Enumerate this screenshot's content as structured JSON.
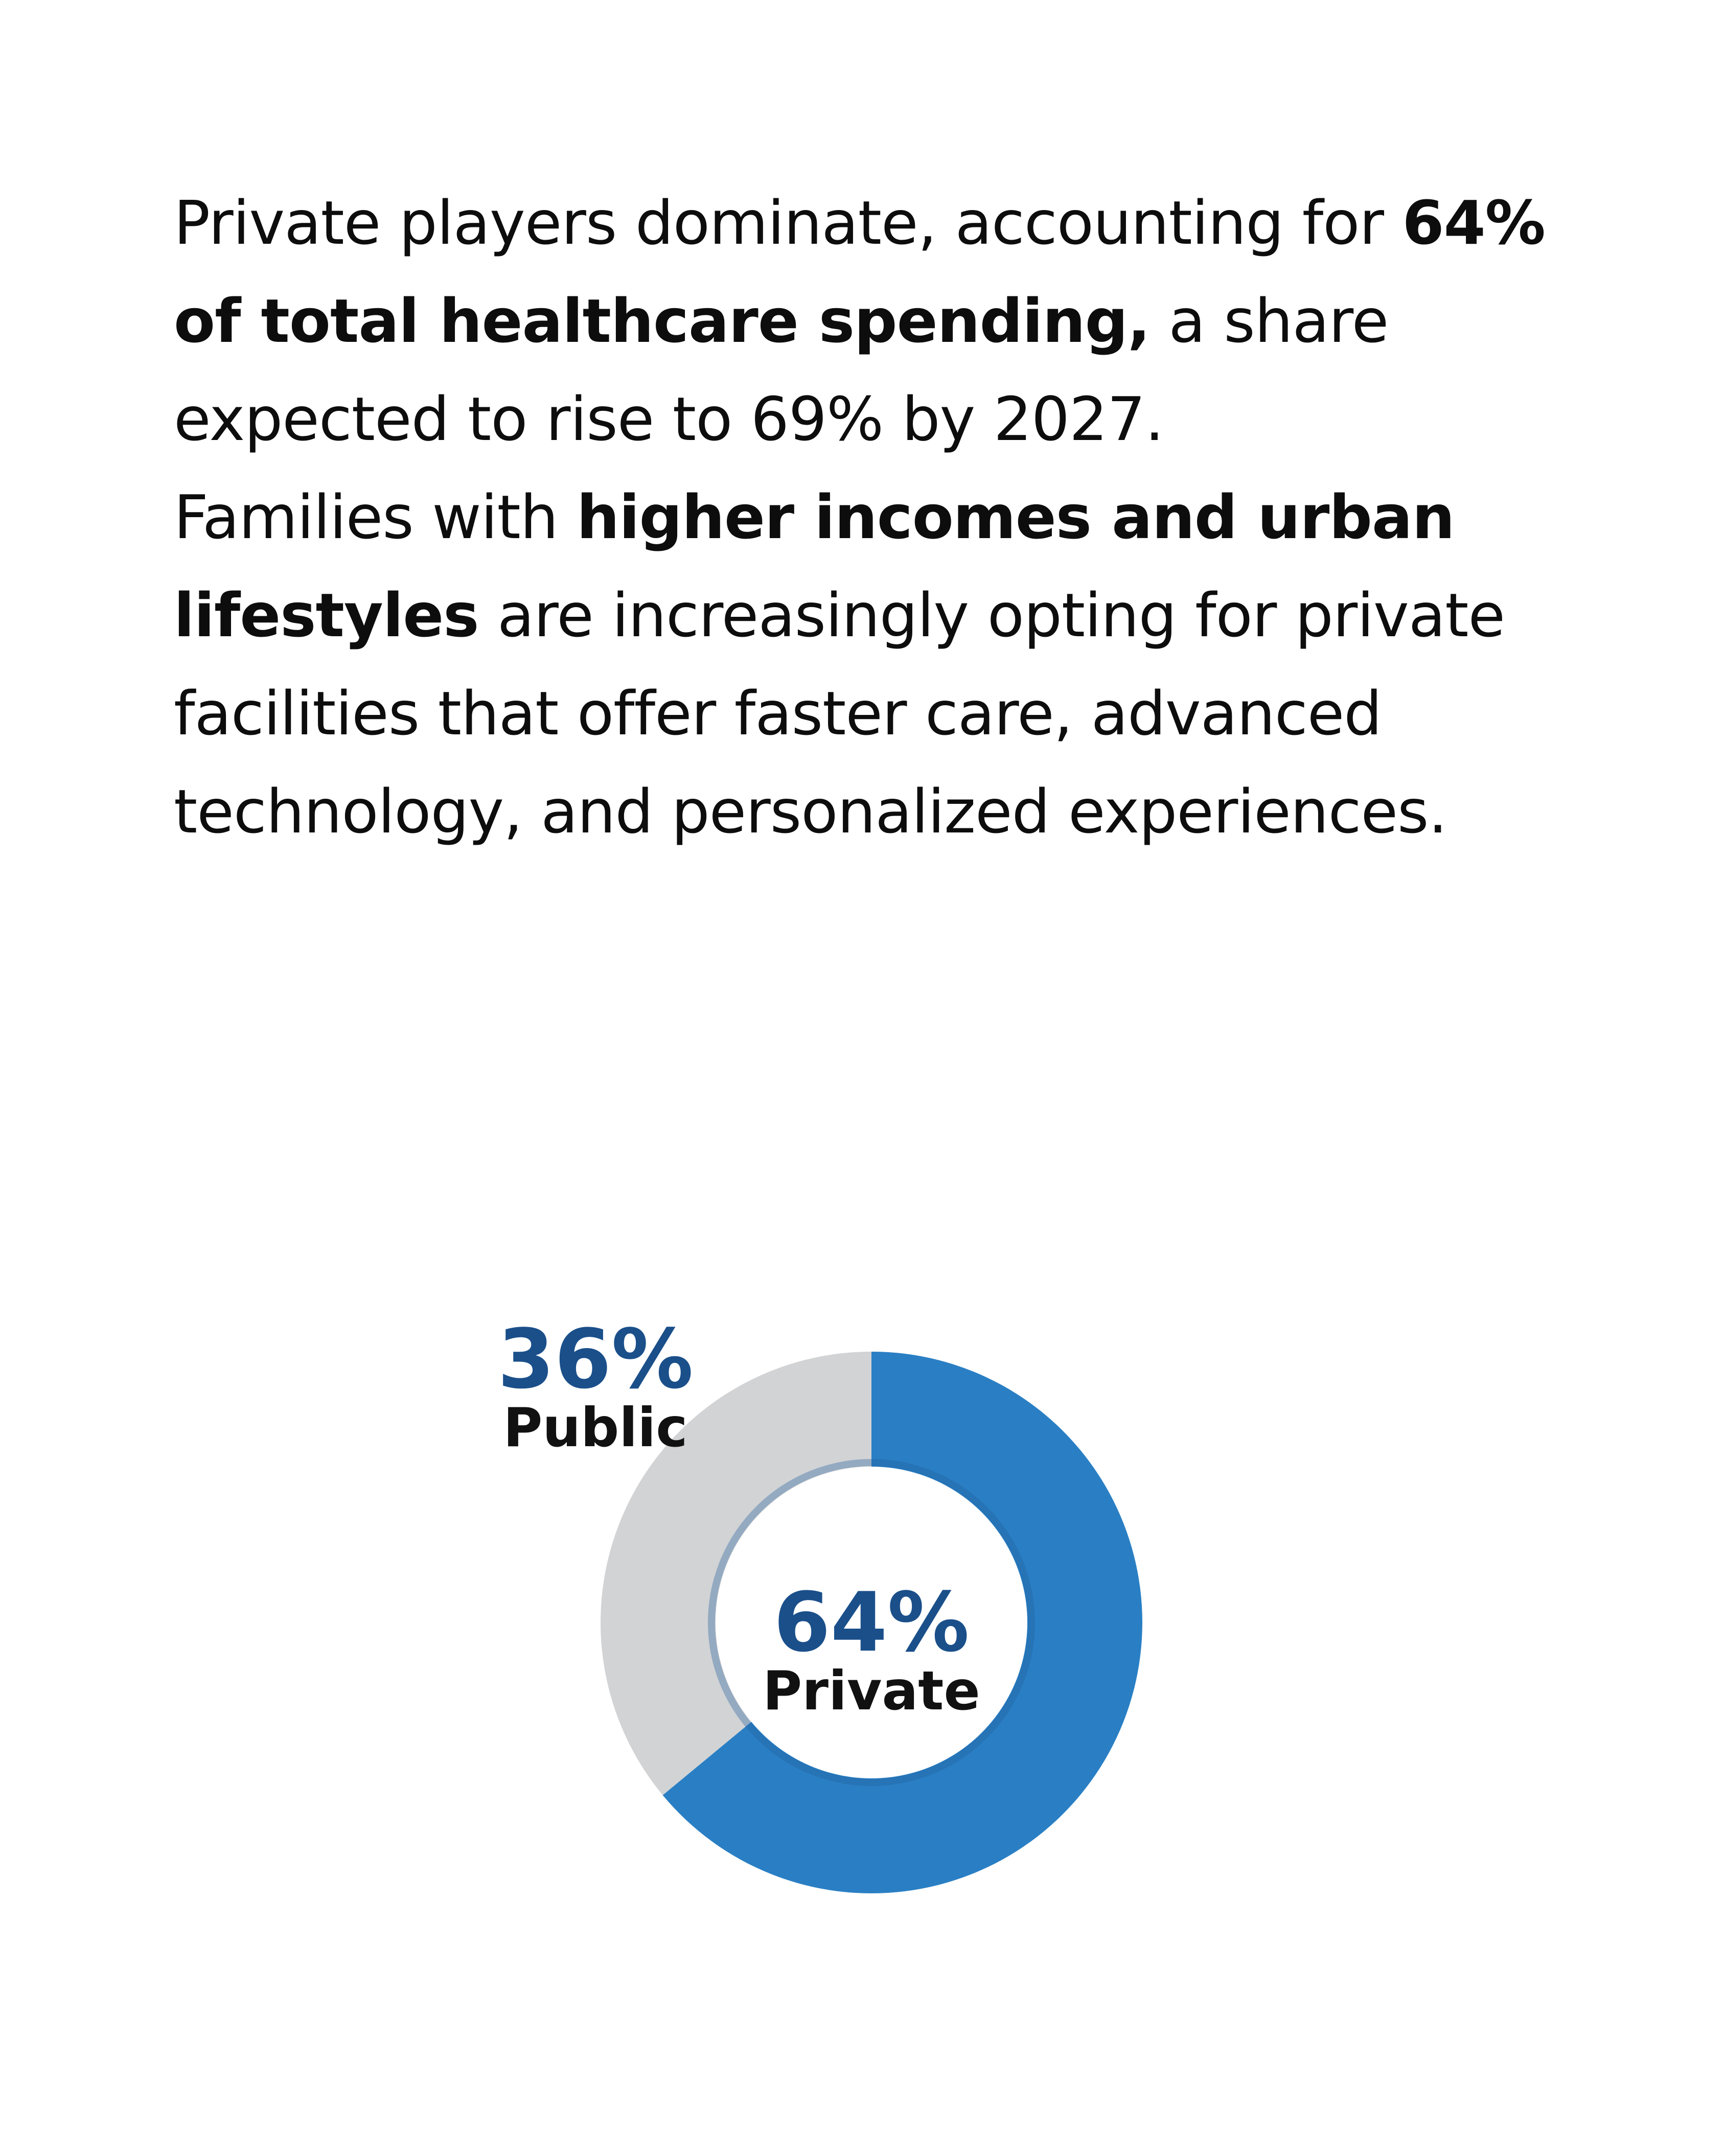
{
  "paragraph1": {
    "part1": "Private players dominate, accounting for ",
    "bold": "64% of total healthcare spending,",
    "part2": " a share expected to rise to 69% by 2027."
  },
  "paragraph2": {
    "part1": "Families with ",
    "bold": "higher incomes and urban lifestyles",
    "part2": " are increasingly opting for private facilities that offer faster care, advanced technology, and personalized experiences."
  },
  "colors": {
    "private": "#2a7fc4",
    "public": "#d2d3d5",
    "pct_text": "#1a4f8a",
    "label_text": "#111111"
  },
  "chart_data": {
    "type": "pie",
    "categories": [
      "Private",
      "Public"
    ],
    "values": [
      64,
      36
    ],
    "labels": [
      {
        "category": "Private",
        "pct": "64%",
        "name": "Private"
      },
      {
        "category": "Public",
        "pct": "36%",
        "name": "Public"
      }
    ],
    "title": "",
    "donut": true
  }
}
